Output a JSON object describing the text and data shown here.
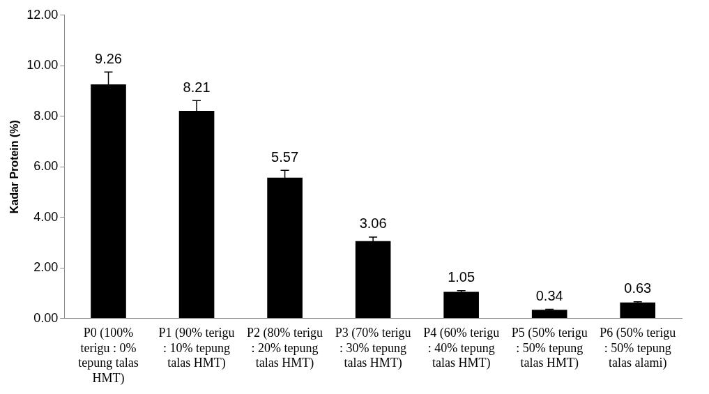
{
  "chart_data": {
    "type": "bar",
    "ylabel": "Kadar Protein (%)",
    "categories": [
      "P0 (100% terigu : 0% tepung talas HMT)",
      "P1 (90% terigu : 10% tepung talas HMT)",
      "P2 (80% terigu : 20% tepung talas HMT)",
      "P3 (70% terigu : 30% tepung talas HMT)",
      "P4 (60% terigu : 40% tepung talas HMT)",
      "P5 (50% terigu : 50% tepung talas HMT)",
      "P6 (50% terigu : 50% tepung talas alami)"
    ],
    "values": [
      9.26,
      8.21,
      5.57,
      3.06,
      1.05,
      0.34,
      0.63
    ],
    "errors": [
      0.49,
      0.41,
      0.29,
      0.16,
      0.05,
      0.02,
      0.03
    ],
    "color": "#000000",
    "data_labels": true,
    "grid": false,
    "legend": false,
    "ylim": [
      0,
      12
    ],
    "yticks": [
      {
        "value": 0,
        "label": "0.00"
      },
      {
        "value": 2,
        "label": "2.00"
      },
      {
        "value": 4,
        "label": "4.00"
      },
      {
        "value": 6,
        "label": "6.00"
      },
      {
        "value": 8,
        "label": "8.00"
      },
      {
        "value": 10,
        "label": "10.00"
      },
      {
        "value": 12,
        "label": "12.00"
      }
    ]
  }
}
